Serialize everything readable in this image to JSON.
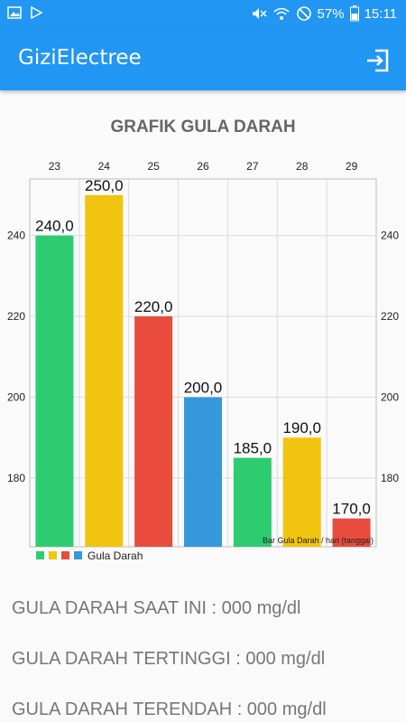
{
  "status_bar": {
    "battery": "57%",
    "time": "15:11",
    "icons": [
      "image-icon",
      "play-store-icon",
      "mute-icon",
      "wifi-icon",
      "no-disturb-icon",
      "battery-icon"
    ]
  },
  "app_bar": {
    "title": "GiziElectree",
    "action_icon": "exit-icon"
  },
  "chart_data": {
    "type": "bar",
    "title": "GRAFIK GULA DARAH",
    "categories": [
      "23",
      "24",
      "25",
      "26",
      "27",
      "28",
      "29"
    ],
    "values": [
      240,
      250,
      220,
      200,
      185,
      190,
      170
    ],
    "value_labels": [
      "240,0",
      "250,0",
      "220,0",
      "200,0",
      "185,0",
      "190,0",
      "170,0"
    ],
    "colors": [
      "#2ecc71",
      "#f1c40f",
      "#e74c3c",
      "#3498db",
      "#2ecc71",
      "#f1c40f",
      "#e74c3c"
    ],
    "ylim": [
      163,
      254
    ],
    "yticks": [
      180,
      200,
      220,
      240
    ],
    "description": "Bar Gula Darah / hari (tanggal)",
    "legend": {
      "label": "Gula Darah",
      "colors": [
        "#2ecc71",
        "#f1c40f",
        "#e74c3c",
        "#3498db"
      ],
      "placement": "bottom-left"
    },
    "grid": true
  },
  "stats": {
    "current": "GULA DARAH SAAT INI : 000 mg/dl",
    "highest": "GULA DARAH TERTINGGI : 000 mg/dl",
    "lowest": "GULA DARAH TERENDAH : 000 mg/dl"
  }
}
